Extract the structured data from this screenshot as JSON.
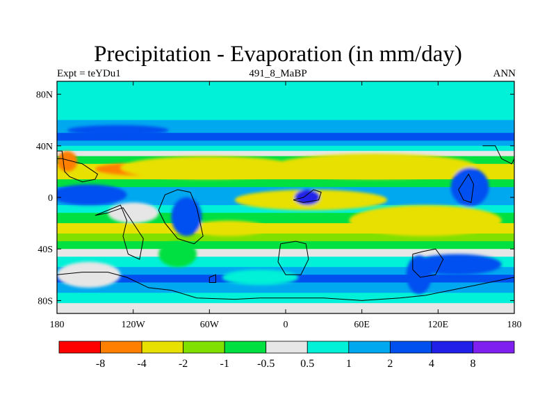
{
  "header": {
    "title": "Precipitation - Evaporation (in mm/day)",
    "left": "Expt = teYDu1",
    "center": "491_8_MaBP",
    "right": "ANN"
  },
  "chart_data": {
    "type": "heatmap",
    "title": "Precipitation - Evaporation (in mm/day)",
    "xlabel": "",
    "ylabel": "",
    "xlim": [
      -180,
      180
    ],
    "ylim": [
      -90,
      90
    ],
    "x_ticks": [
      {
        "value": -180,
        "label": "180"
      },
      {
        "value": -120,
        "label": "120W"
      },
      {
        "value": -60,
        "label": "60W"
      },
      {
        "value": 0,
        "label": "0"
      },
      {
        "value": 60,
        "label": "60E"
      },
      {
        "value": 120,
        "label": "120E"
      },
      {
        "value": 180,
        "label": "180"
      }
    ],
    "y_ticks": [
      {
        "value": 80,
        "label": "80N"
      },
      {
        "value": 40,
        "label": "40N"
      },
      {
        "value": 0,
        "label": "0"
      },
      {
        "value": -40,
        "label": "40S"
      },
      {
        "value": -80,
        "label": "80S"
      }
    ],
    "colorbar": {
      "levels": [
        "-8",
        "-4",
        "-2",
        "-1",
        "-0.5",
        "0.5",
        "1",
        "2",
        "4",
        "8"
      ],
      "colors": [
        "#ff0000",
        "#ff8000",
        "#e8e000",
        "#80e000",
        "#00e040",
        "#e6e6e6",
        "#00f0d8",
        "#00a8f0",
        "#0050f0",
        "#2020e8",
        "#8020f0"
      ]
    },
    "bands": [
      {
        "lat": 90,
        "color": "#00f0d8"
      },
      {
        "lat": 78,
        "color": "#00f0d8"
      },
      {
        "lat": 70,
        "color": "#00f0d8"
      },
      {
        "lat": 60,
        "color": "#00a8f0"
      },
      {
        "lat": 50,
        "color": "#0050f0"
      },
      {
        "lat": 44,
        "color": "#00a8f0"
      },
      {
        "lat": 40,
        "color": "#00f0d8"
      },
      {
        "lat": 36,
        "color": "#e6e6e6"
      },
      {
        "lat": 32,
        "color": "#00e040"
      },
      {
        "lat": 26,
        "color": "#e8e000"
      },
      {
        "lat": 20,
        "color": "#e8e000"
      },
      {
        "lat": 14,
        "color": "#00e040"
      },
      {
        "lat": 8,
        "color": "#00a8f0"
      },
      {
        "lat": 0,
        "color": "#00a8f0"
      },
      {
        "lat": -6,
        "color": "#00f0d8"
      },
      {
        "lat": -12,
        "color": "#00e040"
      },
      {
        "lat": -20,
        "color": "#e8e000"
      },
      {
        "lat": -28,
        "color": "#80e000"
      },
      {
        "lat": -34,
        "color": "#00e040"
      },
      {
        "lat": -40,
        "color": "#e6e6e6"
      },
      {
        "lat": -46,
        "color": "#00f0d8"
      },
      {
        "lat": -54,
        "color": "#00a8f0"
      },
      {
        "lat": -60,
        "color": "#0050f0"
      },
      {
        "lat": -66,
        "color": "#00a8f0"
      },
      {
        "lat": -74,
        "color": "#00f0d8"
      },
      {
        "lat": -82,
        "color": "#e6e6e6"
      },
      {
        "lat": -90,
        "color": "#00f0d8"
      }
    ],
    "blobs": [
      {
        "lon": -110,
        "lat": 22,
        "rlon": 40,
        "rlat": 5,
        "color": "#ff8000"
      },
      {
        "lon": -60,
        "lat": 23,
        "rlon": 70,
        "rlat": 9,
        "color": "#e8e000"
      },
      {
        "lon": 110,
        "lat": 22,
        "rlon": 38,
        "rlat": 5,
        "color": "#ff8000"
      },
      {
        "lon": 70,
        "lat": 24,
        "rlon": 80,
        "rlat": 10,
        "color": "#e8e000"
      },
      {
        "lon": -172,
        "lat": 28,
        "rlon": 8,
        "rlat": 8,
        "color": "#ff8000"
      },
      {
        "lon": 30,
        "lat": -2,
        "rlon": 40,
        "rlat": 6,
        "color": "#ff8000"
      },
      {
        "lon": 20,
        "lat": -2,
        "rlon": 60,
        "rlat": 8,
        "color": "#e8e000"
      },
      {
        "lon": 120,
        "lat": -20,
        "rlon": 42,
        "rlat": 7,
        "color": "#ff8000"
      },
      {
        "lon": 110,
        "lat": -18,
        "rlon": 60,
        "rlat": 12,
        "color": "#e8e000"
      },
      {
        "lon": -45,
        "lat": -24,
        "rlon": 30,
        "rlat": 6,
        "color": "#e8e000"
      },
      {
        "lon": -120,
        "lat": -12,
        "rlon": 20,
        "rlat": 8,
        "color": "#e6e6e6"
      },
      {
        "lon": -155,
        "lat": -60,
        "rlon": 25,
        "rlat": 10,
        "color": "#e6e6e6"
      },
      {
        "lon": -20,
        "lat": -62,
        "rlon": 30,
        "rlat": 6,
        "color": "#00f0d8"
      },
      {
        "lon": -155,
        "lat": 2,
        "rlon": 30,
        "rlat": 8,
        "color": "#0050f0"
      },
      {
        "lon": -78,
        "lat": -15,
        "rlon": 12,
        "rlat": 15,
        "color": "#0050f0"
      },
      {
        "lon": 17,
        "lat": 0,
        "rlon": 10,
        "rlat": 6,
        "color": "#2020e8"
      },
      {
        "lon": 105,
        "lat": -60,
        "rlon": 10,
        "rlat": 15,
        "color": "#0050f0"
      },
      {
        "lon": 135,
        "lat": -52,
        "rlon": 35,
        "rlat": 8,
        "color": "#0050f0"
      },
      {
        "lon": -132,
        "lat": 52,
        "rlon": 40,
        "rlat": 4,
        "color": "#0050f0"
      },
      {
        "lon": 145,
        "lat": 8,
        "rlon": 15,
        "rlat": 15,
        "color": "#0050f0"
      },
      {
        "lon": -85,
        "lat": -44,
        "rlon": 15,
        "rlat": 10,
        "color": "#00e040"
      }
    ],
    "coastlines": [
      [
        [
          -180,
          36
        ],
        [
          -176,
          36
        ],
        [
          -174,
          20
        ],
        [
          -170,
          16
        ],
        [
          -160,
          12
        ],
        [
          -150,
          14
        ],
        [
          -148,
          18
        ],
        [
          -160,
          26
        ],
        [
          -176,
          30
        ],
        [
          -180,
          30
        ]
      ],
      [
        [
          -150,
          -14
        ],
        [
          -140,
          -10
        ],
        [
          -130,
          -6
        ],
        [
          -125,
          -18
        ],
        [
          -128,
          -30
        ],
        [
          -124,
          -44
        ],
        [
          -115,
          -48
        ],
        [
          -112,
          -32
        ],
        [
          -120,
          -20
        ],
        [
          -128,
          -8
        ],
        [
          -140,
          -12
        ],
        [
          -150,
          -14
        ]
      ],
      [
        [
          -100,
          -10
        ],
        [
          -95,
          2
        ],
        [
          -85,
          6
        ],
        [
          -75,
          4
        ],
        [
          -70,
          -8
        ],
        [
          -65,
          -30
        ],
        [
          -72,
          -36
        ],
        [
          -85,
          -32
        ],
        [
          -95,
          -20
        ],
        [
          -100,
          -10
        ]
      ],
      [
        [
          -180,
          -60
        ],
        [
          -160,
          -58
        ],
        [
          -140,
          -58
        ],
        [
          -125,
          -62
        ],
        [
          -108,
          -70
        ],
        [
          -90,
          -72
        ],
        [
          -70,
          -78
        ],
        [
          -40,
          -79
        ],
        [
          -20,
          -78
        ],
        [
          0,
          -78
        ],
        [
          30,
          -78
        ],
        [
          60,
          -80
        ],
        [
          90,
          -78
        ],
        [
          110,
          -76
        ],
        [
          130,
          -72
        ],
        [
          150,
          -68
        ],
        [
          170,
          -64
        ],
        [
          180,
          -62
        ]
      ],
      [
        [
          -4,
          -36
        ],
        [
          8,
          -34
        ],
        [
          16,
          -36
        ],
        [
          18,
          -48
        ],
        [
          12,
          -60
        ],
        [
          0,
          -60
        ],
        [
          -6,
          -50
        ],
        [
          -4,
          -36
        ]
      ],
      [
        [
          6,
          -2
        ],
        [
          14,
          0
        ],
        [
          22,
          6
        ],
        [
          28,
          4
        ],
        [
          26,
          -2
        ],
        [
          14,
          -4
        ],
        [
          6,
          -2
        ]
      ],
      [
        [
          100,
          -44
        ],
        [
          108,
          -42
        ],
        [
          118,
          -40
        ],
        [
          124,
          -48
        ],
        [
          118,
          -60
        ],
        [
          106,
          -62
        ],
        [
          100,
          -56
        ],
        [
          100,
          -44
        ]
      ],
      [
        [
          136,
          6
        ],
        [
          144,
          18
        ],
        [
          148,
          10
        ],
        [
          146,
          -4
        ],
        [
          140,
          -2
        ],
        [
          136,
          6
        ]
      ],
      [
        [
          155,
          40
        ],
        [
          165,
          40
        ],
        [
          170,
          30
        ],
        [
          178,
          26
        ],
        [
          180,
          30
        ]
      ],
      [
        [
          -60,
          -62
        ],
        [
          -55,
          -60
        ],
        [
          -55,
          -66
        ],
        [
          -60,
          -66
        ],
        [
          -60,
          -62
        ]
      ]
    ]
  },
  "colors": {
    "frame": "#000000",
    "background": "#ffffff"
  }
}
